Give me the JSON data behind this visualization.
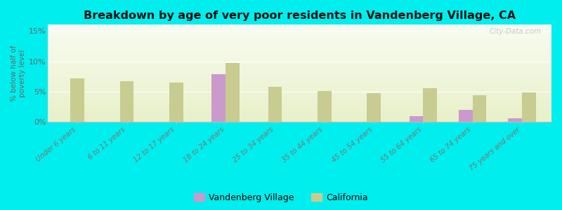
{
  "title": "Breakdown by age of very poor residents in Vandenberg Village, CA",
  "ylabel": "% below half of\npoverty level",
  "categories": [
    "Under 6 years",
    "6 to 11 years",
    "12 to 17 years",
    "18 to 24 years",
    "25 to 34 years",
    "35 to 44 years",
    "45 to 54 years",
    "55 to 64 years",
    "65 to 74 years",
    "75 years and over"
  ],
  "vandenberg_values": [
    null,
    null,
    null,
    7.9,
    null,
    null,
    null,
    1.0,
    2.0,
    0.6
  ],
  "california_values": [
    7.2,
    6.7,
    6.5,
    9.7,
    5.8,
    5.1,
    4.8,
    5.6,
    4.4,
    4.9
  ],
  "vandenberg_color": "#cc99cc",
  "california_color": "#c8cc90",
  "background_color": "#00eeee",
  "grad_top": "#f8fbf0",
  "grad_bottom": "#e8f0c8",
  "ylim": [
    0,
    16
  ],
  "yticks": [
    0,
    5,
    10,
    15
  ],
  "ytick_labels": [
    "0%",
    "5%",
    "10%",
    "15%"
  ],
  "watermark": "City-Data.com",
  "legend_vandenberg": "Vandenberg Village",
  "legend_california": "California",
  "bar_width": 0.28
}
